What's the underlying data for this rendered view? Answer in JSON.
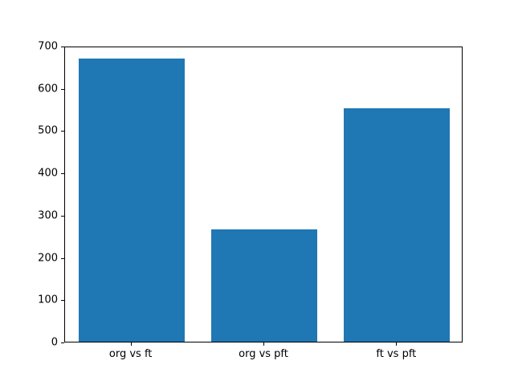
{
  "figure": {
    "background": "#ffffff"
  },
  "chart_data": {
    "type": "bar",
    "title": "",
    "xlabel": "",
    "ylabel": "",
    "categories": [
      "org vs ft",
      "org vs pft",
      "ft vs pft"
    ],
    "values": [
      670,
      265,
      552
    ],
    "bar_color": "#1f77b4",
    "bar_width_fraction": 0.8,
    "ylim": [
      0,
      700
    ],
    "yticks": [
      0,
      100,
      200,
      300,
      400,
      500,
      600,
      700
    ],
    "grid": false,
    "legend_position": "none"
  }
}
